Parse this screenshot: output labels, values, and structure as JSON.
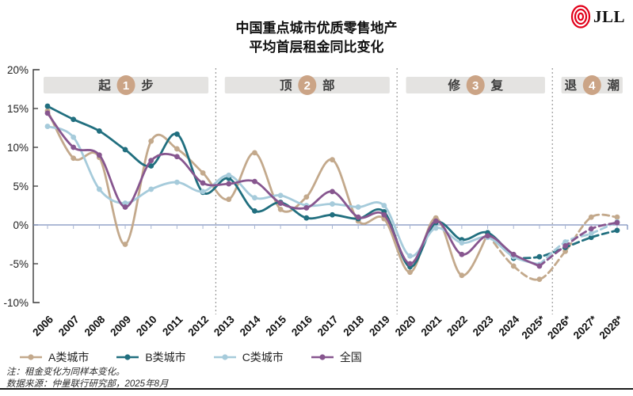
{
  "header": {
    "title_line1": "中国重点城市优质零售地产",
    "title_line2": "平均首层租金同比变化",
    "logo_text": "JLL",
    "logo_color": "#e2001a"
  },
  "notes": {
    "line1": "注：租金变化为同样本变化。",
    "line2": "数据来源：仲量联行研究部，2025年8月"
  },
  "chart_data": {
    "type": "line",
    "x": [
      "2006",
      "2007",
      "2008",
      "2009",
      "2010",
      "2011",
      "2012",
      "2013",
      "2014",
      "2015",
      "2016",
      "2017",
      "2018",
      "2019",
      "2020",
      "2021",
      "2022",
      "2023",
      "2024",
      "2025*",
      "2026*",
      "2027*",
      "2028*"
    ],
    "ylabel_ticks": [
      "20%",
      "15%",
      "10%",
      "5%",
      "0%",
      "-5%",
      "-10%"
    ],
    "ytick_values": [
      20,
      15,
      10,
      5,
      0,
      -5,
      -10
    ],
    "ylim": [
      -10,
      20
    ],
    "zero_line_color": "#7d90bd",
    "phase_band_color": "#e4e3e1",
    "phase_circle_color": "#cba486",
    "phases": [
      {
        "char1": "起",
        "number": "1",
        "char2": "步",
        "from": "2006",
        "to": "2012"
      },
      {
        "char1": "顶",
        "number": "2",
        "char2": "部",
        "from": "2013",
        "to": "2019"
      },
      {
        "char1": "修",
        "number": "3",
        "char2": "复",
        "from": "2020",
        "to": "2025*"
      },
      {
        "char1": "退",
        "number": "4",
        "char2": "潮",
        "from": "2026*",
        "to": "2028*"
      }
    ],
    "series": [
      {
        "name": "A类城市",
        "color": "#c3a98c",
        "values": [
          14.7,
          8.6,
          8.7,
          -2.5,
          10.8,
          9.8,
          6.7,
          3.3,
          9.3,
          2.0,
          3.6,
          8.4,
          0.5,
          0.8,
          -6.1,
          0.9,
          -6.5,
          -1.2,
          -5.3,
          -7.0,
          -3.4,
          1.0,
          1.0
        ],
        "solid_until": "2023"
      },
      {
        "name": "B类城市",
        "color": "#216f7f",
        "values": [
          15.3,
          13.6,
          12.1,
          9.7,
          7.6,
          11.7,
          4.2,
          6.0,
          1.8,
          2.9,
          0.9,
          1.3,
          0.8,
          1.7,
          -5.4,
          0.3,
          -1.9,
          -1.0,
          -4.3,
          -4.1,
          -2.9,
          -1.6,
          -0.7
        ],
        "solid_until": "2024"
      },
      {
        "name": "C类城市",
        "color": "#a6cbdb",
        "values": [
          12.7,
          11.3,
          4.6,
          2.8,
          4.6,
          5.5,
          4.3,
          6.4,
          3.5,
          3.8,
          2.5,
          2.7,
          2.3,
          2.5,
          -4.0,
          -0.4,
          -2.3,
          -1.6,
          -4.1,
          -5.1,
          -2.2,
          -1.1,
          0.4
        ],
        "solid_until": "2025*"
      },
      {
        "name": "全国",
        "color": "#87568f",
        "values": [
          14.4,
          10.0,
          9.0,
          2.3,
          8.3,
          8.8,
          5.4,
          5.3,
          5.6,
          2.8,
          2.2,
          4.3,
          1.0,
          1.3,
          -5.0,
          0.5,
          -3.8,
          -1.4,
          -3.8,
          -5.3,
          -2.7,
          -0.5,
          0.3
        ],
        "solid_until": "2025*"
      }
    ],
    "title": "中国重点城市优质零售地产 平均首层租金同比变化",
    "legend_position": "bottom-left",
    "grid": false
  }
}
